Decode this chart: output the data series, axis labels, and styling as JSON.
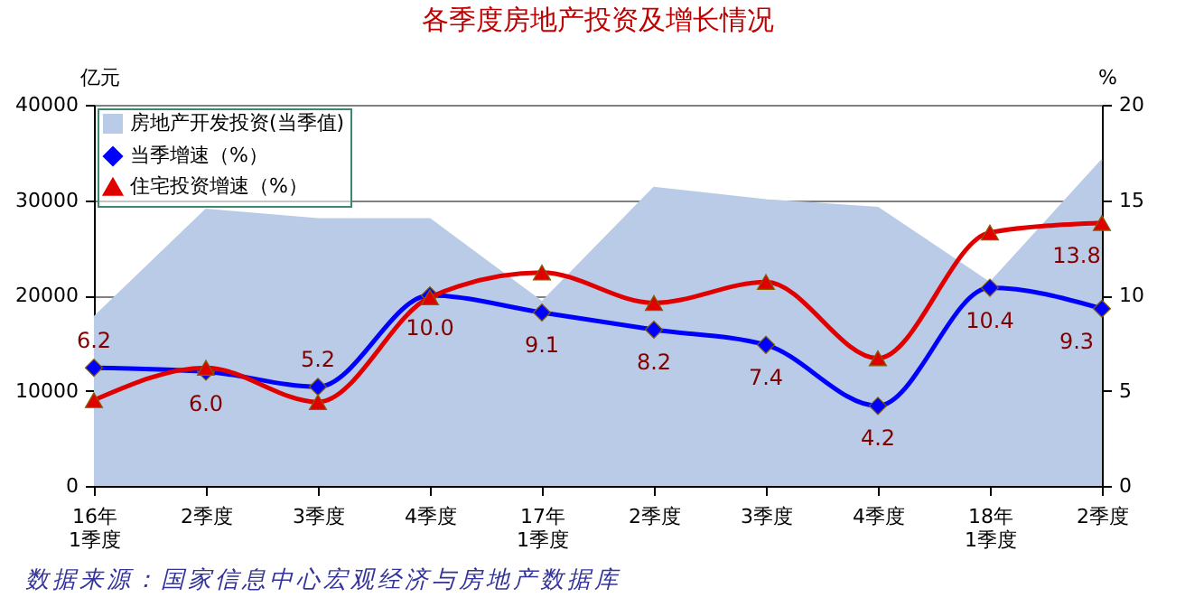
{
  "chart_data": {
    "type": "line",
    "title": "各季度房地产投资及增长情况",
    "ylabel": "亿元",
    "y2label": "%",
    "categories": [
      "16年\n1季度",
      "2季度",
      "3季度",
      "4季度",
      "17年\n1季度",
      "2季度",
      "3季度",
      "4季度",
      "18年\n1季度",
      "2季度"
    ],
    "series": [
      {
        "name": "房地产开发投资(当季值)",
        "type": "area",
        "color": "#b9cbe6",
        "values": [
          17700,
          29000,
          28000,
          28000,
          19300,
          31300,
          30000,
          29200,
          21300,
          34200
        ]
      },
      {
        "name": "当季增速（%）",
        "axis": "y2",
        "color": "#0000ff",
        "marker": "diamond",
        "values": [
          6.2,
          6.0,
          5.2,
          10.0,
          9.1,
          8.2,
          7.4,
          4.2,
          10.4,
          9.3
        ],
        "value_labels": [
          "6.2",
          "6.0",
          "5.2",
          "10.0",
          "9.1",
          "8.2",
          "7.4",
          "4.2",
          "10.4",
          "9.3"
        ]
      },
      {
        "name": "住宅投资增速（%）",
        "axis": "y2",
        "color": "#e00000",
        "marker": "triangle",
        "values": [
          4.5,
          6.2,
          4.4,
          9.9,
          11.2,
          9.6,
          10.7,
          6.7,
          13.3,
          13.8
        ],
        "value_labels": [
          null,
          null,
          null,
          null,
          null,
          null,
          null,
          null,
          null,
          "13.8"
        ]
      }
    ],
    "ylim": [
      0,
      40000
    ],
    "yticks": [
      0,
      10000,
      20000,
      30000,
      40000
    ],
    "y2lim": [
      0,
      20
    ],
    "y2ticks": [
      0,
      5,
      10,
      15,
      20
    ],
    "grid": "y",
    "legend": "top left",
    "annotations": [
      "数据来源：国家信息中心宏观经济与房地产数据库"
    ]
  }
}
